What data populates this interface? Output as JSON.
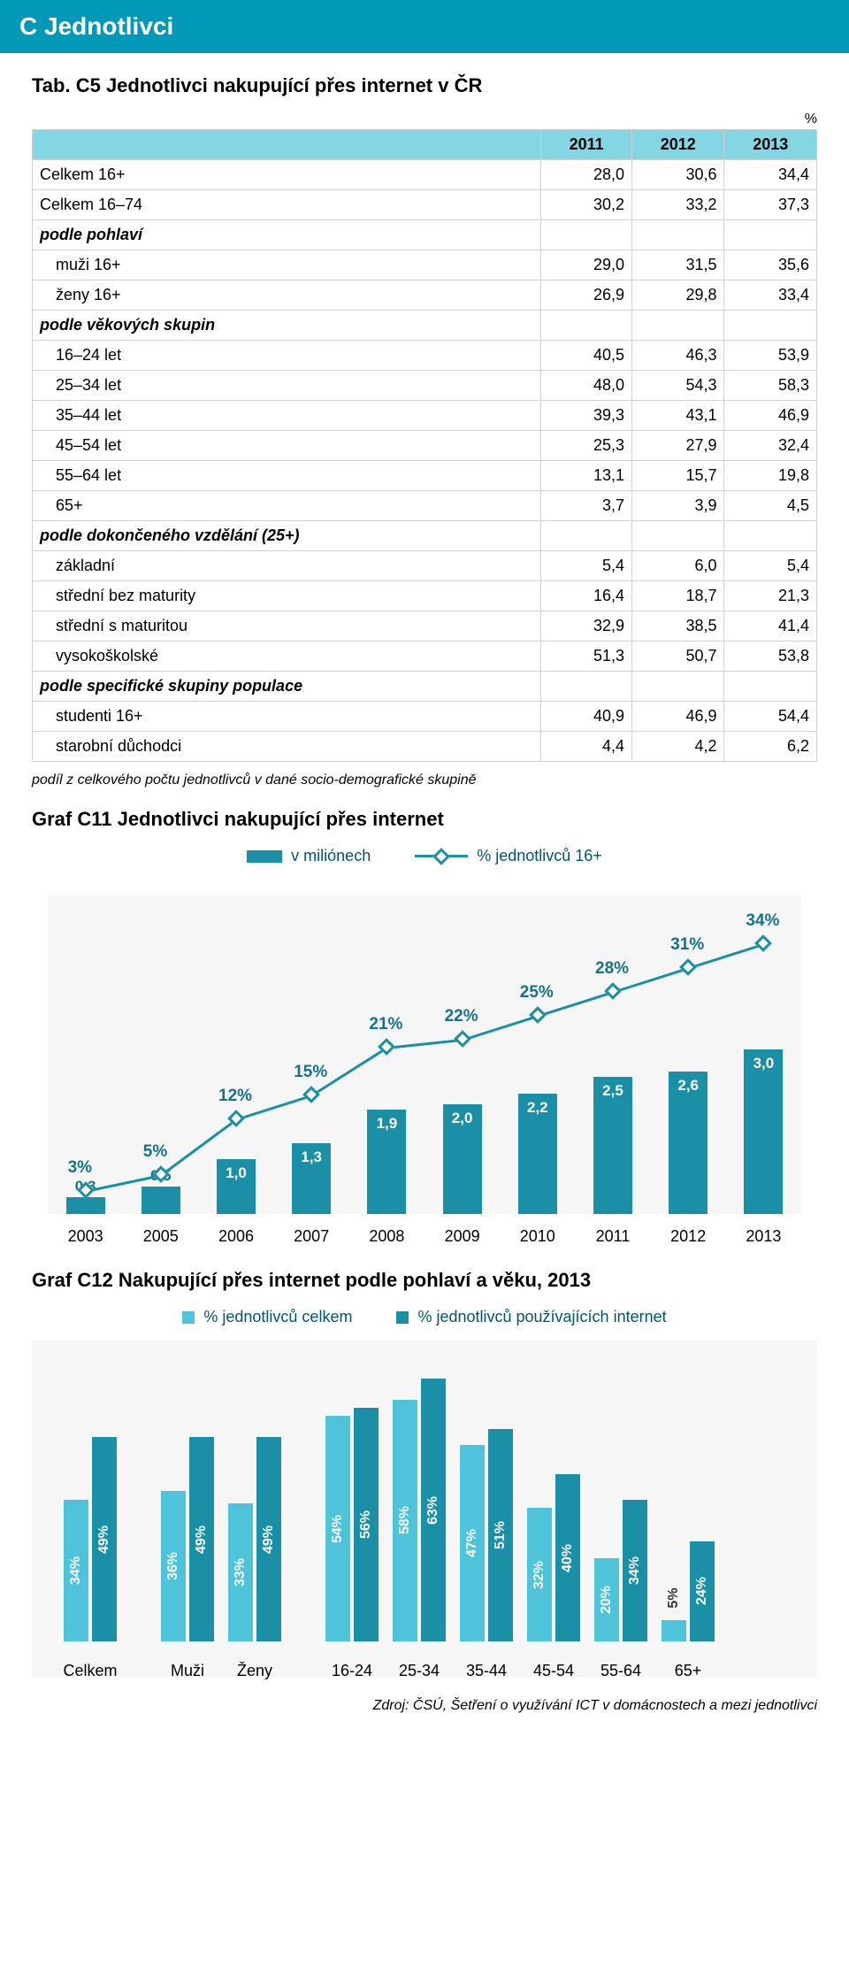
{
  "header": {
    "title": "C  Jednotlivci"
  },
  "table": {
    "title": "Tab. C5 Jednotlivci nakupující přes internet v ČR",
    "pct_symbol": "%",
    "columns": [
      "",
      "2011",
      "2012",
      "2013"
    ],
    "rows": [
      {
        "type": "data",
        "label": "Celkem 16+",
        "v": [
          "28,0",
          "30,6",
          "34,4"
        ]
      },
      {
        "type": "data",
        "label": "Celkem 16–74",
        "v": [
          "30,2",
          "33,2",
          "37,3"
        ]
      },
      {
        "type": "section",
        "label": "podle pohlaví"
      },
      {
        "type": "sub",
        "label": "muži 16+",
        "v": [
          "29,0",
          "31,5",
          "35,6"
        ]
      },
      {
        "type": "sub",
        "label": "ženy 16+",
        "v": [
          "26,9",
          "29,8",
          "33,4"
        ]
      },
      {
        "type": "section",
        "label": "podle věkových skupin"
      },
      {
        "type": "sub",
        "label": "16–24 let",
        "v": [
          "40,5",
          "46,3",
          "53,9"
        ]
      },
      {
        "type": "sub",
        "label": "25–34 let",
        "v": [
          "48,0",
          "54,3",
          "58,3"
        ]
      },
      {
        "type": "sub",
        "label": "35–44 let",
        "v": [
          "39,3",
          "43,1",
          "46,9"
        ]
      },
      {
        "type": "sub",
        "label": "45–54 let",
        "v": [
          "25,3",
          "27,9",
          "32,4"
        ]
      },
      {
        "type": "sub",
        "label": "55–64 let",
        "v": [
          "13,1",
          "15,7",
          "19,8"
        ]
      },
      {
        "type": "sub",
        "label": "65+",
        "v": [
          "3,7",
          "3,9",
          "4,5"
        ]
      },
      {
        "type": "section",
        "label": "podle dokončeného vzdělání (25+)"
      },
      {
        "type": "sub",
        "label": "základní",
        "v": [
          "5,4",
          "6,0",
          "5,4"
        ]
      },
      {
        "type": "sub",
        "label": "střední bez maturity",
        "v": [
          "16,4",
          "18,7",
          "21,3"
        ]
      },
      {
        "type": "sub",
        "label": "střední s maturitou",
        "v": [
          "32,9",
          "38,5",
          "41,4"
        ]
      },
      {
        "type": "sub",
        "label": "vysokoškolské",
        "v": [
          "51,3",
          "50,7",
          "53,8"
        ]
      },
      {
        "type": "section",
        "label": "podle specifické skupiny populace"
      },
      {
        "type": "sub",
        "label": "studenti 16+",
        "v": [
          "40,9",
          "46,9",
          "54,4"
        ]
      },
      {
        "type": "sub",
        "label": "starobní důchodci",
        "v": [
          "4,4",
          "4,2",
          "6,2"
        ]
      }
    ],
    "footnote": "podíl z celkového počtu jednotlivců v dané socio-demografické skupině"
  },
  "chart_c11": {
    "title": "Graf C11 Jednotlivci nakupující přes internet",
    "legend_bar": "v miliónech",
    "legend_line": "% jednotlivců 16+",
    "bar_color": "#1a8fa6",
    "line_color": "#1a8fa6",
    "bg_color": "#f6f6f6",
    "categories": [
      "2003",
      "2005",
      "2006",
      "2007",
      "2008",
      "2009",
      "2010",
      "2011",
      "2012",
      "2013"
    ],
    "bar_values": [
      0.3,
      0.5,
      1.0,
      1.3,
      1.9,
      2.0,
      2.2,
      2.5,
      2.6,
      3.0
    ],
    "bar_labels": [
      "0,3",
      "0,5",
      "1,0",
      "1,3",
      "1,9",
      "2,0",
      "2,2",
      "2,5",
      "2,6",
      "3,0"
    ],
    "line_values": [
      3,
      5,
      12,
      15,
      21,
      22,
      25,
      28,
      31,
      34
    ],
    "line_labels": [
      "3%",
      "5%",
      "12%",
      "15%",
      "21%",
      "22%",
      "25%",
      "28%",
      "31%",
      "34%"
    ],
    "bar_max": 3.2,
    "line_max": 40
  },
  "chart_c12": {
    "title": "Graf C12 Nakupující přes internet podle pohlaví a věku, 2013",
    "legend1": "% jednotlivců celkem",
    "legend2": "% jednotlivců používajících internet",
    "color1": "#4fc3d9",
    "color2": "#1a8fa6",
    "bg_color": "#f6f6f6",
    "ymax": 70,
    "groups": [
      {
        "label": "Celkem",
        "v1": 34,
        "v2": 49
      },
      {
        "label": "Muži",
        "v1": 36,
        "v2": 49
      },
      {
        "label": "Ženy",
        "v1": 33,
        "v2": 49
      },
      {
        "label": "16-24",
        "v1": 54,
        "v2": 56
      },
      {
        "label": "25-34",
        "v1": 58,
        "v2": 63
      },
      {
        "label": "35-44",
        "v1": 47,
        "v2": 51
      },
      {
        "label": "45-54",
        "v1": 32,
        "v2": 40
      },
      {
        "label": "55-64",
        "v1": 20,
        "v2": 34
      },
      {
        "label": "65+",
        "v1": 5,
        "v2": 24
      }
    ],
    "group_gaps_after": [
      0,
      2
    ]
  },
  "source": "Zdroj: ČSÚ, Šetření o využívání ICT v domácnostech a mezi jednotlivci"
}
